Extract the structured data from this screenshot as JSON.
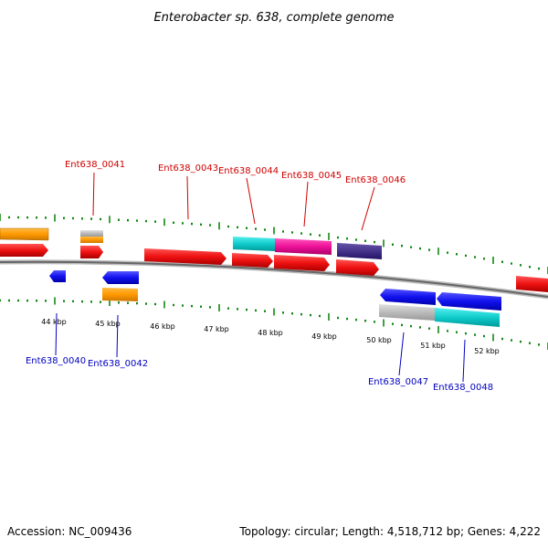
{
  "title": "Enterobacter sp. 638, complete genome",
  "footer": {
    "accession": "Accession: NC_009436",
    "summary": "Topology: circular; Length: 4,518,712 bp; Genes: 4,222"
  },
  "scale_labels": [
    "44 kbp",
    "45 kbp",
    "46 kbp",
    "47 kbp",
    "48 kbp",
    "49 kbp",
    "50 kbp",
    "51 kbp",
    "52 kbp"
  ],
  "labels_top": [
    "Ent638_0041",
    "Ent638_0043",
    "Ent638_0044",
    "Ent638_0045",
    "Ent638_0046"
  ],
  "labels_bottom": [
    "Ent638_0040",
    "Ent638_0042",
    "Ent638_0047",
    "Ent638_0048"
  ],
  "colors": {
    "cds": "#ee1111",
    "cds_reverse": "#1111ee",
    "orange": "#ff9900",
    "gray": "#bbbbbb",
    "cyan": "#11cccc",
    "magenta": "#ee1199",
    "purple": "#443388",
    "tick": "#118811",
    "backbone": "#777777"
  }
}
